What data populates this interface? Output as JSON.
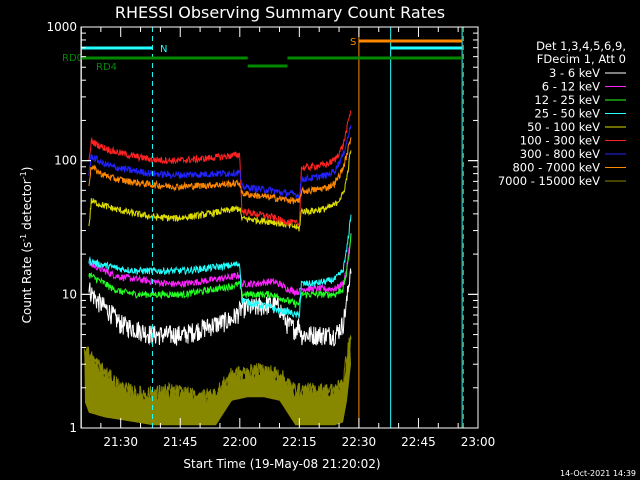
{
  "chart_data": {
    "type": "line",
    "title": "RHESSI Observing Summary Count Rates",
    "xlabel": "Start Time (19-May-08 21:20:02)",
    "ylabel": "Count Rate (s⁻¹ detector⁻¹)",
    "ylabel_main": "Count Rate (s",
    "ylabel_mid": " detector",
    "ylabel_end": ")",
    "ylabel_sup": "-1",
    "xlim_minutes": [
      0,
      100
    ],
    "ylim": [
      1,
      1000
    ],
    "yscale": "log",
    "x_ticks": [
      {
        "t": 10,
        "label": "21:30"
      },
      {
        "t": 25,
        "label": "21:45"
      },
      {
        "t": 40,
        "label": "22:00"
      },
      {
        "t": 55,
        "label": "22:15"
      },
      {
        "t": 70,
        "label": "22:30"
      },
      {
        "t": 85,
        "label": "22:45"
      },
      {
        "t": 100,
        "label": "23:00"
      }
    ],
    "y_ticks": [
      {
        "v": 1,
        "label": "1"
      },
      {
        "v": 10,
        "label": "10"
      },
      {
        "v": 100,
        "label": "100"
      },
      {
        "v": 1000,
        "label": "1000"
      }
    ],
    "legend_header": [
      "Det 1,3,4,5,6,9,",
      "FDecim 1, Att 0"
    ],
    "series": [
      {
        "name": "3 - 6 keV",
        "color": "#ffffff",
        "x": [
          2,
          4,
          6,
          8,
          10,
          14,
          18,
          22,
          26,
          30,
          34,
          38,
          40,
          40.5,
          44,
          48,
          50,
          52,
          54,
          55,
          55.5,
          58,
          62,
          64,
          66,
          67,
          68
        ],
        "values": [
          11,
          9,
          8,
          7,
          6,
          5.5,
          5,
          5,
          5,
          5.5,
          6,
          6.5,
          7.5,
          8,
          8,
          8.5,
          8,
          6,
          5.5,
          6,
          5,
          5,
          5,
          5,
          6,
          9,
          17
        ]
      },
      {
        "name": "6 - 12 keV",
        "color": "#ff22ff",
        "x": [
          2,
          4,
          6,
          8,
          10,
          14,
          18,
          22,
          26,
          30,
          34,
          38,
          40,
          40.5,
          44,
          48,
          50,
          52,
          54,
          55,
          55.5,
          58,
          62,
          64,
          66,
          67,
          68
        ],
        "values": [
          17,
          16,
          15,
          14,
          13.5,
          13,
          12.5,
          12,
          12,
          12.5,
          13,
          13.5,
          14,
          12,
          12,
          12.5,
          12,
          11,
          10.5,
          10.5,
          11,
          11,
          11,
          11,
          12,
          16,
          28
        ]
      },
      {
        "name": "12 - 25 keV",
        "color": "#22ff22",
        "x": [
          2,
          4,
          6,
          8,
          10,
          14,
          18,
          22,
          26,
          30,
          34,
          38,
          40,
          40.5,
          44,
          48,
          50,
          52,
          54,
          55,
          55.5,
          58,
          62,
          64,
          66,
          67,
          68
        ],
        "values": [
          14,
          13,
          12,
          11,
          10.5,
          10,
          10,
          10,
          10,
          10.5,
          11,
          11.5,
          12,
          10,
          10,
          10,
          9.5,
          9,
          8.5,
          8.5,
          10,
          10,
          10,
          10,
          11,
          15,
          27
        ]
      },
      {
        "name": "25 - 50 keV",
        "color": "#22ffff",
        "x": [
          2,
          4,
          6,
          8,
          10,
          14,
          18,
          22,
          26,
          30,
          34,
          38,
          40,
          40.5,
          44,
          48,
          50,
          52,
          54,
          55,
          55.5,
          58,
          62,
          64,
          66,
          67,
          68
        ],
        "values": [
          18,
          17,
          16.5,
          16,
          15.5,
          15,
          15,
          15,
          15,
          15.5,
          16,
          16.5,
          17,
          9,
          8.5,
          8,
          7.5,
          7.5,
          7,
          7,
          12,
          12,
          12.5,
          13,
          15,
          22,
          40
        ]
      },
      {
        "name": "50 - 100 keV",
        "color": "#dddd00",
        "x": [
          2,
          2.6,
          5,
          8,
          12,
          18,
          24,
          30,
          34,
          38,
          40,
          40.5,
          44,
          48,
          50,
          52,
          54,
          55,
          55.5,
          58,
          62,
          64,
          66,
          67,
          68
        ],
        "values": [
          32,
          50,
          47,
          44,
          41,
          38,
          37,
          39,
          41,
          43,
          44,
          37,
          36,
          35,
          34,
          33,
          32,
          31,
          42,
          42,
          44,
          47,
          56,
          75,
          125
        ]
      },
      {
        "name": "100 - 300 keV",
        "color": "#ff2222",
        "x": [
          2,
          2.6,
          5,
          8,
          12,
          18,
          24,
          30,
          34,
          38,
          40,
          40.5,
          44,
          48,
          50,
          52,
          54,
          55,
          55.5,
          58,
          62,
          64,
          66,
          67,
          68
        ],
        "values": [
          95,
          140,
          128,
          118,
          110,
          102,
          100,
          103,
          106,
          109,
          111,
          42,
          40,
          38,
          36,
          35,
          34,
          33,
          88,
          90,
          94,
          102,
          130,
          175,
          240
        ]
      },
      {
        "name": "300 - 800 keV",
        "color": "#2222ff",
        "x": [
          2,
          2.6,
          5,
          8,
          12,
          18,
          24,
          30,
          34,
          38,
          40,
          40.5,
          44,
          48,
          50,
          52,
          54,
          55,
          55.5,
          58,
          62,
          64,
          66,
          67,
          68
        ],
        "values": [
          80,
          108,
          97,
          90,
          85,
          80,
          78,
          79,
          80,
          81,
          82,
          64,
          62,
          60,
          58,
          57,
          56,
          55,
          73,
          74,
          78,
          85,
          110,
          140,
          185
        ]
      },
      {
        "name": "800 - 7000 keV",
        "color": "#ff8800",
        "x": [
          2,
          2.6,
          5,
          8,
          12,
          18,
          24,
          30,
          34,
          38,
          40,
          40.5,
          44,
          48,
          50,
          52,
          54,
          55,
          55.5,
          58,
          62,
          64,
          66,
          67,
          68
        ],
        "values": [
          68,
          90,
          80,
          74,
          70,
          66,
          64,
          65,
          66,
          67,
          68,
          57,
          55,
          53,
          52,
          51,
          50,
          49,
          59,
          60,
          63,
          68,
          88,
          112,
          150
        ]
      },
      {
        "name": "7000 - 15000 keV",
        "color": "#888800",
        "x": [
          0.8,
          2,
          6,
          10,
          14,
          18,
          22,
          26,
          30,
          34,
          38,
          42,
          46,
          50,
          54,
          58,
          62,
          64,
          66,
          67,
          68
        ],
        "values": [
          4,
          3.5,
          2.6,
          2,
          1.8,
          1.8,
          1.9,
          1.8,
          1.7,
          1.8,
          2.5,
          2.6,
          2.7,
          2.5,
          1.9,
          1.9,
          1.9,
          1.9,
          2.2,
          3.5,
          5
        ]
      }
    ],
    "fill_band": {
      "color": "#888800",
      "x": [
        0.8,
        2,
        6,
        10,
        14,
        18,
        22,
        26,
        30,
        34,
        38,
        42,
        46,
        50,
        54,
        58,
        62,
        64,
        66,
        67,
        68
      ],
      "lower": [
        1.6,
        1.3,
        1.2,
        1.15,
        1.1,
        1.05,
        1.05,
        1.05,
        1.05,
        1.05,
        1.6,
        1.7,
        1.7,
        1.6,
        1.05,
        1.05,
        1.05,
        1.05,
        1.1,
        1.6,
        3
      ]
    },
    "flag_lines": [
      {
        "label": "N",
        "color": "#22ffff",
        "segments": [
          [
            0,
            18
          ]
        ],
        "level": 1
      },
      {
        "label": "RD0",
        "color": "#008800",
        "segments": [
          [
            0,
            42
          ],
          [
            52,
            96
          ]
        ],
        "level": 2
      },
      {
        "label": "RD4",
        "color": "#008800",
        "segments": [
          [
            42,
            52
          ]
        ],
        "level": 3
      },
      {
        "label": "S",
        "color": "#ff8800",
        "segments": [
          [
            70,
            96
          ]
        ],
        "level": 0
      },
      {
        "label": "",
        "color": "#22ffff",
        "segments": [
          [
            78,
            96
          ]
        ],
        "level": 1
      }
    ],
    "vertical_markers": [
      {
        "t": 0.1,
        "color": "#22ffff",
        "style": "solid"
      },
      {
        "t": 18,
        "color": "#22ffff",
        "style": "dash"
      },
      {
        "t": 70,
        "color": "#ff8800",
        "style": "solid"
      },
      {
        "t": 78,
        "color": "#22ffff",
        "style": "solid"
      },
      {
        "t": 96,
        "color": "#22ffff",
        "style": "solid"
      },
      {
        "t": 96.3,
        "color": "#ff8800",
        "style": "dash"
      }
    ]
  },
  "timestamp": "14-Oct-2021 14:39"
}
